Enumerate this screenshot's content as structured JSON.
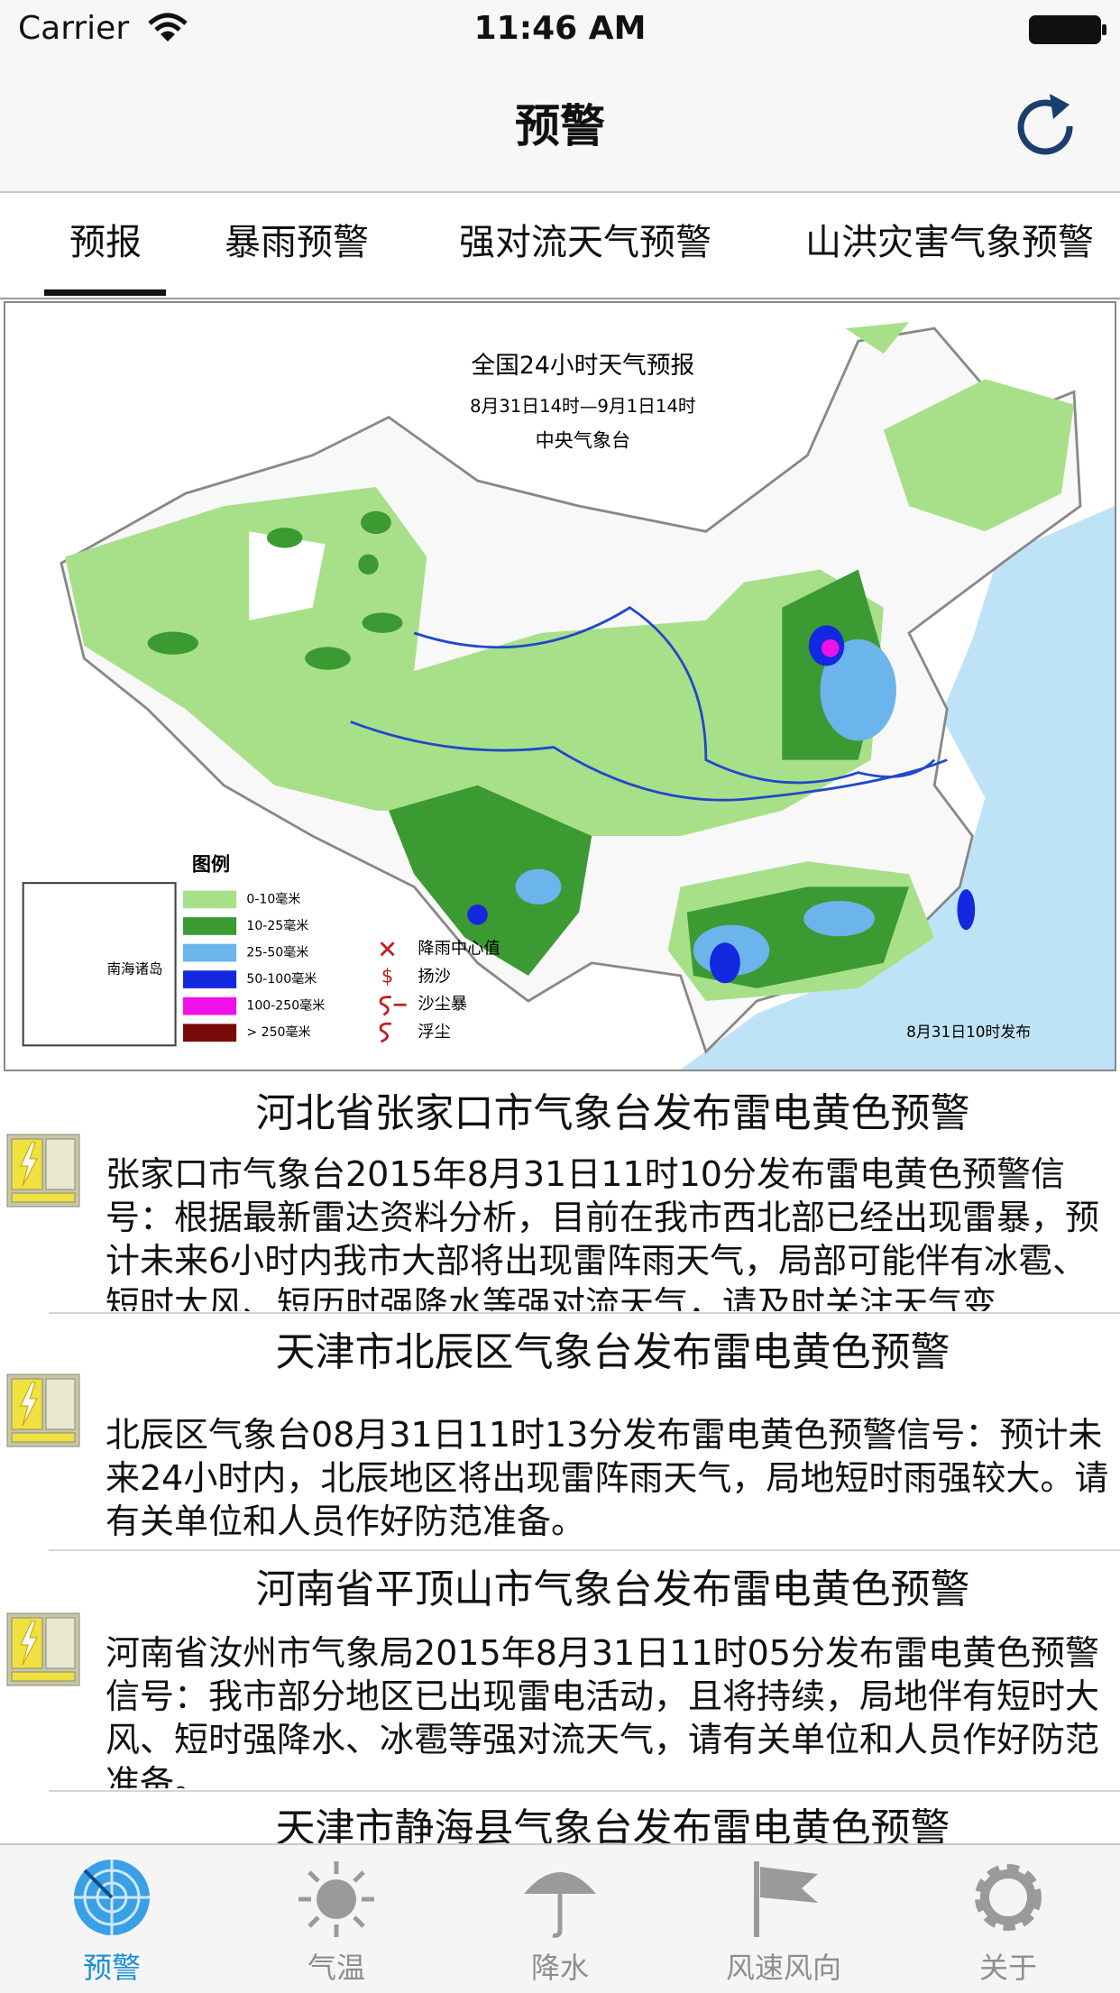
{
  "status_bar": {
    "carrier": "Carrier",
    "time": "11:46 AM"
  },
  "nav_bar": {
    "title": "预警"
  },
  "tabs": [
    "预报",
    "暴雨预警",
    "强对流天气预警",
    "山洪灾害气象预警"
  ],
  "map": {
    "title": "全国24小时天气预报",
    "period": "8月31日14时—9月1日14时",
    "issuer": "中央气象台",
    "legend_title": "图例",
    "legend": [
      {
        "label": "0-10毫米",
        "color": "#a8e08a"
      },
      {
        "label": "10-25毫米",
        "color": "#3c9a32"
      },
      {
        "label": "25-50毫米",
        "color": "#6cb4ec"
      },
      {
        "label": "50-100毫米",
        "color": "#1428e0"
      },
      {
        "label": "100-250毫米",
        "color": "#f010e8"
      },
      {
        "label": "> 250毫米",
        "color": "#7a0a0a"
      }
    ],
    "symbols": [
      "降雨中心值",
      "扬沙",
      "沙尘暴",
      "浮尘"
    ],
    "inset_label": "南海诸岛",
    "issued": "8月31日10时发布"
  },
  "warnings": [
    {
      "title": "河北省张家口市气象台发布雷电黄色预警",
      "body": "张家口市气象台2015年8月31日11时10分发布雷电黄色预警信号：根据最新雷达资料分析，目前在我市西北部已经出现雷暴，预计未来6小时内我市大部将出现雷阵雨天气，局部可能伴有冰雹、短时大风、短历时强降水等强对流天气，请及时关注天气变"
    },
    {
      "title": "天津市北辰区气象台发布雷电黄色预警",
      "body": "北辰区气象台08月31日11时13分发布雷电黄色预警信号：预计未来24小时内，北辰地区将出现雷阵雨天气，局地短时雨强较大。请有关单位和人员作好防范准备。"
    },
    {
      "title": "河南省平顶山市气象台发布雷电黄色预警",
      "body": "河南省汝州市气象局2015年8月31日11时05分发布雷电黄色预警信号：我市部分地区已出现雷电活动，且将持续，局地伴有短时大风、短时强降水、冰雹等强对流天气，请有关单位和人员作好防范准备。"
    },
    {
      "title": "天津市静海县气象台发布雷电黄色预警"
    }
  ],
  "tab_bar": [
    "预警",
    "气温",
    "降水",
    "风速风向",
    "关于"
  ]
}
